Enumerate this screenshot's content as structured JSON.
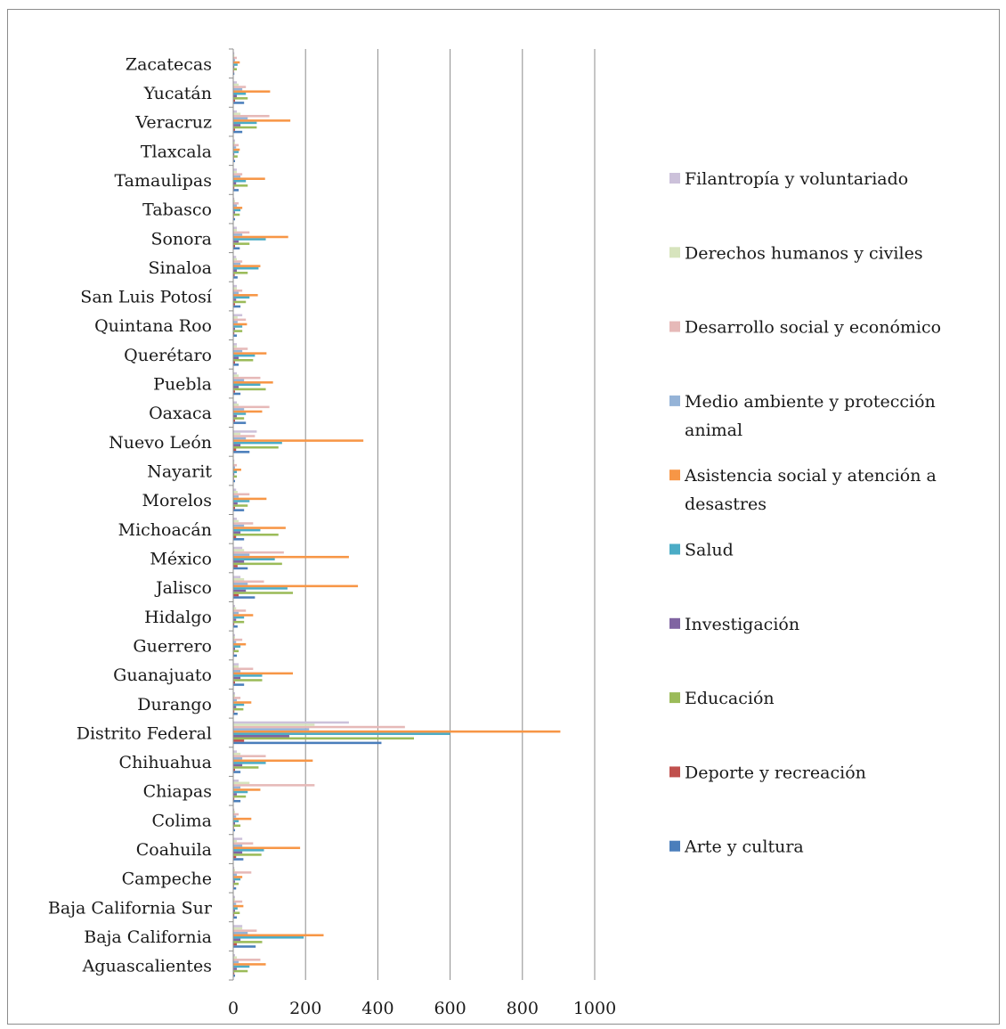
{
  "chart_data": {
    "type": "bar",
    "orientation": "horizontal",
    "categories": [
      "Aguascalientes",
      "Baja California",
      "Baja California Sur",
      "Campeche",
      "Coahuila",
      "Colima",
      "Chiapas",
      "Chihuahua",
      "Distrito Federal",
      "Durango",
      "Guanajuato",
      "Guerrero",
      "Hidalgo",
      "Jalisco",
      "México",
      "Michoacán",
      "Morelos",
      "Nayarit",
      "Nuevo León",
      "Oaxaca",
      "Puebla",
      "Querétaro",
      "Quintana Roo",
      "San Luis Potosí",
      "Sinaloa",
      "Sonora",
      "Tabasco",
      "Tamaulipas",
      "Tlaxcala",
      "Veracruz",
      "Yucatán",
      "Zacatecas"
    ],
    "series": [
      {
        "name": "Arte y cultura",
        "color": "#4a7ebb",
        "values": [
          5,
          62,
          10,
          8,
          28,
          5,
          20,
          20,
          410,
          12,
          30,
          10,
          12,
          60,
          40,
          30,
          30,
          5,
          45,
          35,
          20,
          15,
          10,
          20,
          12,
          18,
          5,
          15,
          5,
          25,
          30,
          3
        ]
      },
      {
        "name": "Deporte y recreación",
        "color": "#c0504d",
        "values": [
          3,
          10,
          3,
          2,
          8,
          2,
          3,
          5,
          30,
          3,
          5,
          2,
          3,
          15,
          12,
          8,
          5,
          2,
          8,
          5,
          5,
          5,
          3,
          5,
          4,
          5,
          2,
          3,
          2,
          5,
          5,
          2
        ]
      },
      {
        "name": "Educación",
        "color": "#9bbb59",
        "values": [
          40,
          80,
          18,
          15,
          78,
          20,
          35,
          70,
          500,
          28,
          80,
          15,
          30,
          165,
          135,
          125,
          40,
          10,
          125,
          30,
          90,
          55,
          25,
          35,
          40,
          45,
          18,
          40,
          12,
          65,
          40,
          10
        ]
      },
      {
        "name": "Investigación",
        "color": "#8064a2",
        "values": [
          10,
          20,
          5,
          5,
          25,
          5,
          10,
          25,
          155,
          8,
          20,
          5,
          8,
          35,
          30,
          20,
          12,
          3,
          20,
          10,
          15,
          15,
          5,
          8,
          10,
          15,
          5,
          8,
          3,
          20,
          10,
          3
        ]
      },
      {
        "name": "Salud",
        "color": "#4bacc6",
        "values": [
          45,
          195,
          12,
          20,
          85,
          15,
          40,
          90,
          600,
          30,
          80,
          20,
          30,
          150,
          115,
          75,
          45,
          10,
          135,
          35,
          75,
          60,
          25,
          45,
          70,
          90,
          20,
          35,
          15,
          65,
          35,
          12
        ]
      },
      {
        "name": "Asistencia social y atención a desastres",
        "color": "#f79646",
        "values": [
          90,
          250,
          28,
          25,
          185,
          50,
          75,
          220,
          905,
          50,
          165,
          35,
          55,
          345,
          320,
          145,
          92,
          22,
          360,
          80,
          110,
          92,
          38,
          68,
          75,
          152,
          25,
          88,
          18,
          158,
          102,
          18
        ]
      },
      {
        "name": "Medio ambiente y protección animal",
        "color": "#95b3d7",
        "values": [
          15,
          40,
          8,
          10,
          25,
          8,
          20,
          25,
          210,
          10,
          20,
          8,
          15,
          40,
          45,
          30,
          15,
          5,
          35,
          30,
          30,
          25,
          12,
          15,
          20,
          25,
          10,
          20,
          8,
          40,
          25,
          5
        ]
      },
      {
        "name": "Desarrollo social y económico",
        "color": "#e6b9b8",
        "values": [
          75,
          65,
          25,
          50,
          55,
          15,
          225,
          90,
          475,
          20,
          55,
          25,
          35,
          85,
          140,
          55,
          45,
          10,
          60,
          100,
          75,
          40,
          35,
          25,
          25,
          45,
          15,
          25,
          15,
          100,
          35,
          10
        ]
      },
      {
        "name": "Derechos humanos y civiles",
        "color": "#d7e4bd",
        "values": [
          10,
          25,
          5,
          5,
          10,
          5,
          45,
          20,
          225,
          5,
          15,
          5,
          8,
          30,
          30,
          15,
          12,
          3,
          20,
          15,
          15,
          10,
          12,
          10,
          10,
          10,
          5,
          10,
          5,
          20,
          15,
          3
        ]
      },
      {
        "name": "Filantropía y voluntariado",
        "color": "#ccc1da",
        "values": [
          5,
          25,
          5,
          3,
          25,
          3,
          15,
          10,
          320,
          5,
          15,
          5,
          5,
          20,
          25,
          10,
          8,
          3,
          65,
          10,
          10,
          10,
          25,
          10,
          8,
          10,
          3,
          10,
          5,
          10,
          10,
          3
        ]
      }
    ],
    "xlim": [
      0,
      1000
    ],
    "xticks": [
      0,
      200,
      400,
      600,
      800,
      1000
    ],
    "grid": true,
    "legend_position": "right",
    "title": "",
    "xlabel": "",
    "ylabel": ""
  }
}
